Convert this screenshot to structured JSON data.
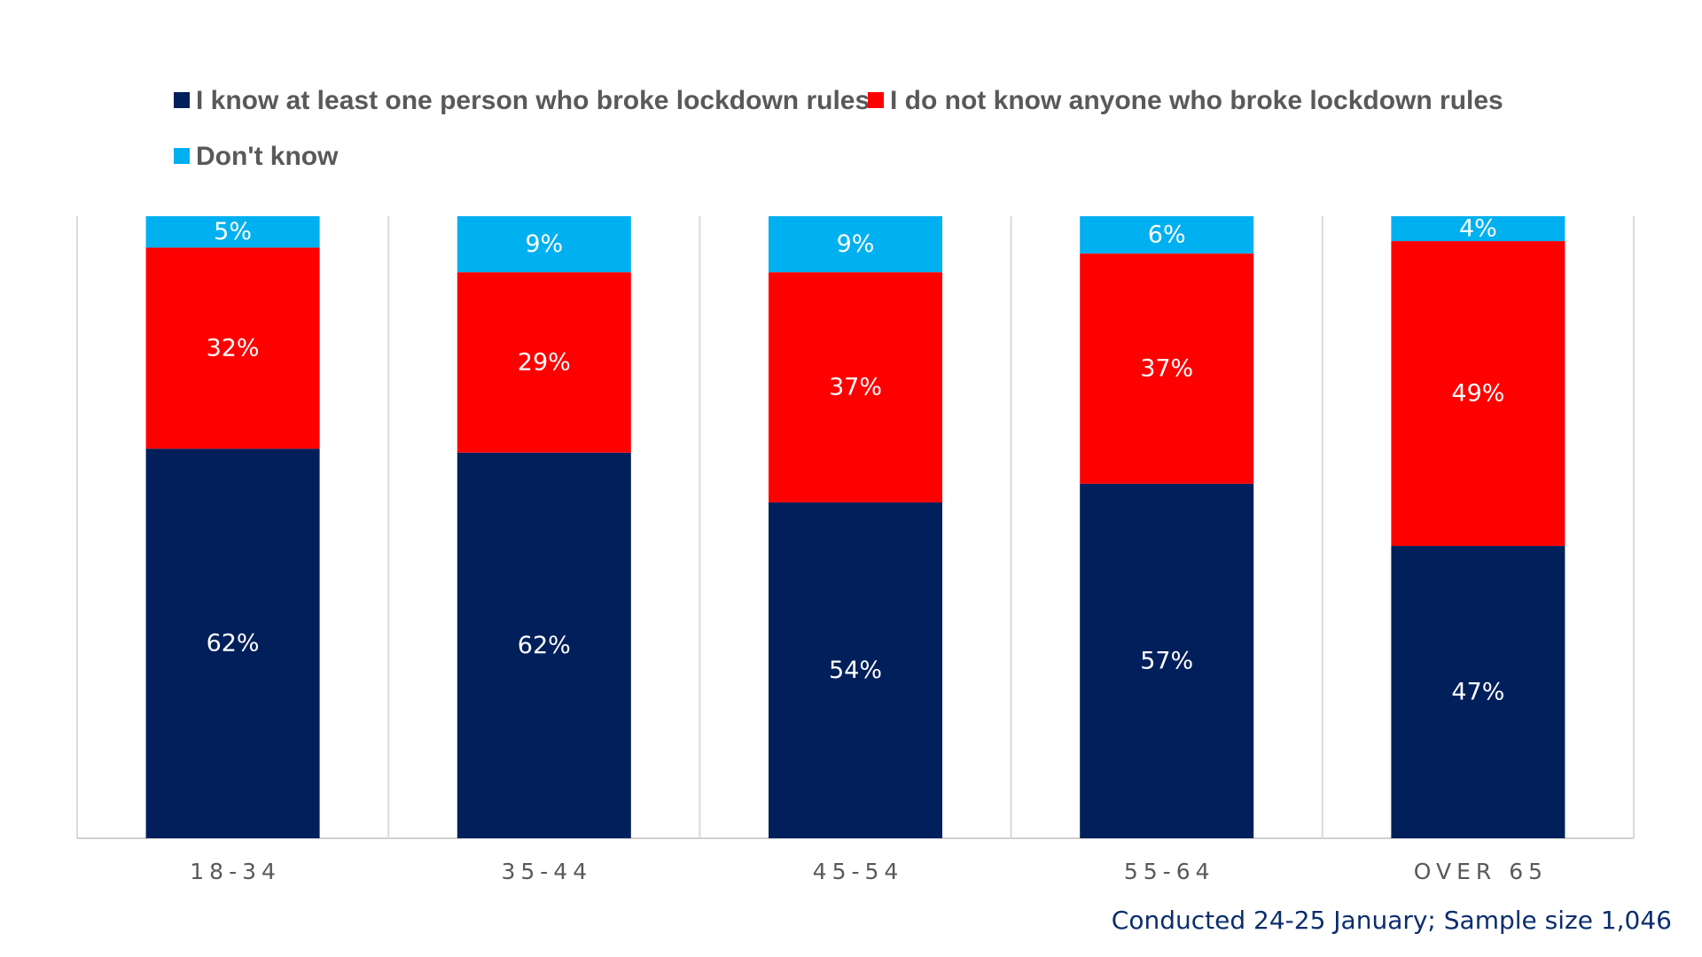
{
  "chart_data": {
    "type": "bar",
    "stacked": true,
    "categories": [
      "18-34",
      "35-44",
      "45-54",
      "55-64",
      "OVER 65"
    ],
    "series": [
      {
        "name": "I know at least one person who broke lockdown rules",
        "color": "#001f5b",
        "values": [
          62,
          62,
          54,
          57,
          47
        ]
      },
      {
        "name": "I do not know anyone who broke lockdown rules",
        "color": "#ff0000",
        "values": [
          32,
          29,
          37,
          37,
          49
        ]
      },
      {
        "name": "Don't know",
        "color": "#00b0f0",
        "values": [
          5,
          9,
          9,
          6,
          4
        ]
      }
    ],
    "value_suffix": "%",
    "legend_position": "top-left",
    "grid": false
  },
  "footnote": "Conducted 24-25 January; Sample size 1,046"
}
